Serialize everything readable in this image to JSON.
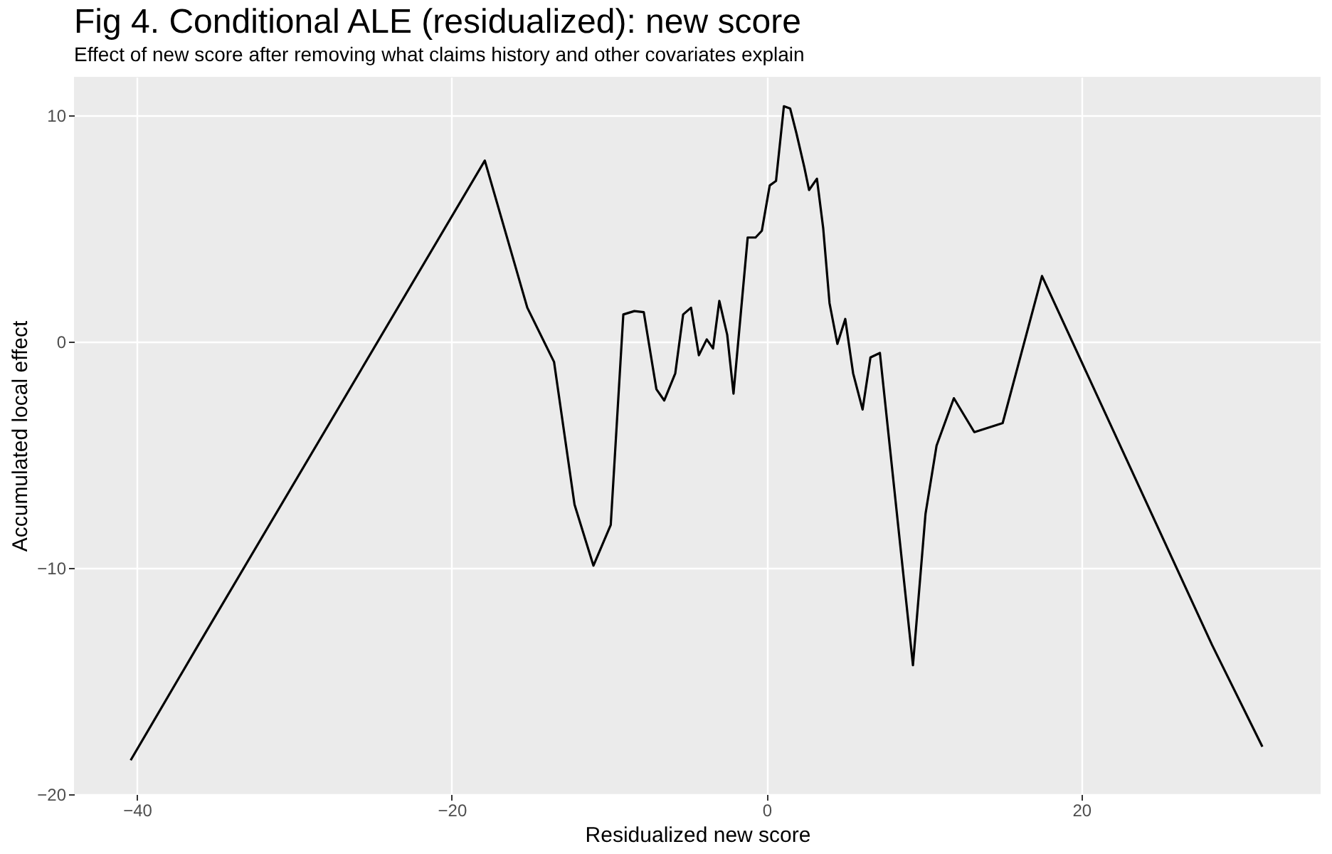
{
  "chart_data": {
    "type": "line",
    "title": "Fig 4. Conditional ALE (residualized): new score",
    "subtitle": "Effect of new score after removing what claims history and other covariates explain",
    "xlabel": "Residualized new score",
    "ylabel": "Accumulated local effect",
    "x": [
      -40.4,
      -36.1,
      -17.9,
      -15.2,
      -13.5,
      -12.2,
      -11.0,
      -9.9,
      -9.1,
      -8.4,
      -7.8,
      -7.0,
      -6.5,
      -5.8,
      -5.3,
      -4.8,
      -4.3,
      -3.8,
      -3.4,
      -3.0,
      -2.5,
      -2.1,
      -1.2,
      -0.7,
      -0.3,
      0.2,
      0.6,
      1.1,
      1.5,
      1.9,
      2.4,
      2.7,
      3.2,
      3.6,
      4.0,
      4.5,
      5.0,
      5.5,
      6.1,
      6.6,
      7.2,
      9.3,
      10.1,
      10.8,
      11.9,
      13.2,
      15.0,
      17.5,
      28.3,
      31.5
    ],
    "series": [
      {
        "color": "#000000",
        "values": [
          -18.5,
          -13.4,
          8.0,
          1.5,
          -0.9,
          -7.2,
          -9.9,
          -8.1,
          1.2,
          1.35,
          1.3,
          -2.1,
          -2.6,
          -1.4,
          1.2,
          1.5,
          -0.6,
          0.1,
          -0.3,
          1.8,
          0.3,
          -2.3,
          4.6,
          4.6,
          4.9,
          6.9,
          7.1,
          10.4,
          10.3,
          9.2,
          7.7,
          6.7,
          7.2,
          5.0,
          1.7,
          -0.1,
          1.0,
          -1.4,
          -3.0,
          -0.7,
          -0.5,
          -14.3,
          -7.6,
          -4.6,
          -2.5,
          -4.0,
          -3.6,
          2.9,
          -13.4,
          -17.9
        ]
      }
    ],
    "xlim": [
      -44,
      35.2
    ],
    "ylim": [
      -20,
      11.7
    ],
    "xticks": [
      -40,
      -20,
      0,
      20
    ],
    "yticks": [
      -20,
      -10,
      0,
      10
    ],
    "grid": true,
    "line_style": "solid"
  }
}
